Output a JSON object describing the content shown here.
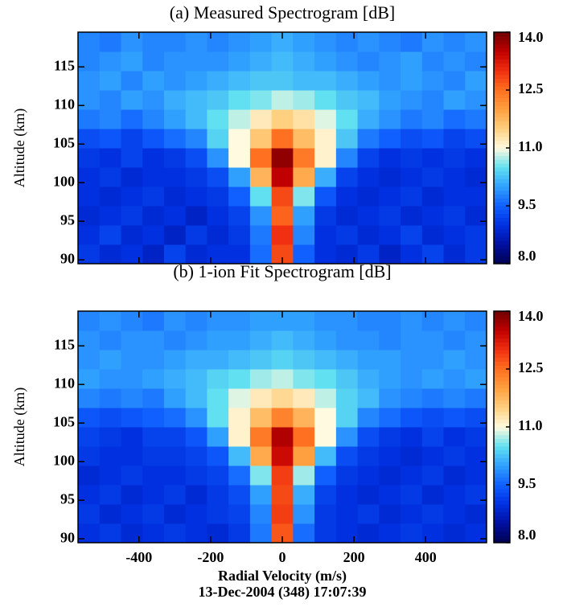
{
  "chart_data": [
    {
      "type": "heatmap",
      "title": "(a) Measured Spectrogram [dB]",
      "y_label": "Altitude (km)",
      "xlim": [
        -570,
        570
      ],
      "ylim": [
        89.5,
        119.5
      ],
      "xticks": [
        -400,
        -200,
        0,
        200,
        400
      ],
      "yticks": [
        90,
        95,
        100,
        105,
        110,
        115
      ],
      "zlim": [
        8,
        14
      ],
      "zticks": [
        {
          "value": 8,
          "label": "8.0"
        },
        {
          "value": 9.5,
          "label": "9.5"
        },
        {
          "value": 11,
          "label": "11.0"
        },
        {
          "value": 12.5,
          "label": "12.5"
        },
        {
          "value": 14,
          "label": "14.0"
        }
      ],
      "colormap": [
        "#000050",
        "#0010a0",
        "#0030e0",
        "#1060ff",
        "#30a0ff",
        "#60e0f0",
        "#fffae0",
        "#ffd080",
        "#ffa040",
        "#ff7020",
        "#f03010",
        "#c00000",
        "#700000"
      ],
      "x": [
        -540,
        -480,
        -420,
        -360,
        -300,
        -240,
        -180,
        -120,
        -60,
        0,
        60,
        120,
        180,
        240,
        300,
        360,
        420,
        480,
        540
      ],
      "y": [
        90.75,
        93.25,
        95.75,
        98.25,
        100.75,
        103.25,
        105.75,
        108.25,
        110.75,
        113.25,
        115.75,
        118.25
      ],
      "z": [
        [
          9.1,
          8.9,
          9.0,
          8.8,
          9.2,
          8.9,
          9.0,
          9.0,
          9.6,
          12.8,
          9.5,
          9.0,
          8.9,
          9.1,
          8.8,
          9.0,
          9.2,
          8.9,
          9.1
        ],
        [
          9.0,
          9.2,
          8.9,
          9.0,
          8.8,
          9.1,
          8.9,
          9.1,
          9.7,
          13.0,
          9.8,
          9.0,
          9.1,
          8.9,
          9.0,
          9.2,
          8.9,
          9.0,
          9.1
        ],
        [
          8.9,
          9.0,
          9.1,
          8.9,
          9.0,
          8.8,
          9.0,
          9.2,
          9.9,
          12.6,
          10.0,
          9.1,
          8.9,
          9.0,
          9.1,
          8.9,
          9.0,
          9.1,
          8.9
        ],
        [
          9.0,
          8.9,
          9.0,
          9.1,
          8.9,
          9.0,
          9.1,
          9.5,
          10.5,
          12.8,
          10.6,
          9.4,
          9.0,
          8.9,
          9.0,
          9.1,
          8.9,
          9.0,
          9.0
        ],
        [
          9.0,
          9.1,
          8.9,
          9.0,
          9.0,
          9.1,
          9.3,
          10.0,
          11.8,
          13.5,
          11.9,
          10.1,
          9.2,
          9.0,
          8.9,
          9.0,
          9.1,
          9.0,
          8.9
        ],
        [
          9.1,
          9.0,
          9.2,
          9.0,
          9.1,
          9.3,
          9.9,
          11.0,
          12.5,
          13.8,
          12.4,
          11.1,
          9.8,
          9.2,
          9.0,
          9.1,
          9.0,
          9.1,
          9.0
        ],
        [
          9.3,
          9.4,
          9.2,
          9.4,
          9.6,
          9.8,
          10.4,
          11.0,
          11.6,
          12.5,
          11.7,
          11.1,
          10.3,
          9.7,
          9.5,
          9.3,
          9.4,
          9.2,
          9.3
        ],
        [
          9.7,
          9.8,
          9.6,
          9.8,
          10.0,
          10.2,
          10.5,
          10.8,
          11.2,
          11.5,
          11.3,
          10.9,
          10.5,
          10.1,
          9.9,
          9.7,
          9.8,
          9.6,
          9.7
        ],
        [
          9.9,
          9.8,
          10.0,
          9.9,
          10.1,
          10.2,
          10.3,
          10.5,
          10.6,
          10.8,
          10.7,
          10.5,
          10.3,
          10.2,
          10.0,
          9.9,
          9.8,
          10.0,
          9.9
        ],
        [
          9.9,
          10.0,
          9.8,
          10.0,
          9.9,
          10.0,
          10.1,
          10.2,
          10.3,
          10.3,
          10.2,
          10.2,
          10.1,
          10.0,
          9.9,
          10.0,
          9.9,
          9.8,
          10.0
        ],
        [
          9.8,
          9.9,
          10.0,
          9.8,
          9.9,
          9.9,
          9.9,
          10.0,
          10.1,
          10.2,
          10.1,
          10.0,
          9.9,
          9.8,
          9.9,
          10.0,
          9.8,
          9.9,
          9.8
        ],
        [
          9.8,
          9.7,
          9.9,
          9.8,
          9.8,
          9.9,
          9.8,
          9.9,
          10.0,
          10.1,
          10.0,
          9.9,
          9.8,
          9.9,
          9.8,
          9.7,
          9.9,
          9.8,
          9.9
        ]
      ]
    },
    {
      "type": "heatmap",
      "title": "(b) 1-ion Fit Spectrogram [dB]",
      "y_label": "Altitude (km)",
      "x_label": "Radial Velocity (m/s)",
      "note": "13-Dec-2004 (348) 17:07:39",
      "xlim": [
        -570,
        570
      ],
      "ylim": [
        89.5,
        119.5
      ],
      "xticks": [
        -400,
        -200,
        0,
        200,
        400
      ],
      "yticks": [
        90,
        95,
        100,
        105,
        110,
        115
      ],
      "zlim": [
        8,
        14
      ],
      "zticks": [
        {
          "value": 8,
          "label": "8.0"
        },
        {
          "value": 9.5,
          "label": "9.5"
        },
        {
          "value": 11,
          "label": "11.0"
        },
        {
          "value": 12.5,
          "label": "12.5"
        },
        {
          "value": 14,
          "label": "14.0"
        }
      ],
      "colormap": [
        "#000050",
        "#0010a0",
        "#0030e0",
        "#1060ff",
        "#30a0ff",
        "#60e0f0",
        "#fffae0",
        "#ffd080",
        "#ffa040",
        "#ff7020",
        "#f03010",
        "#c00000",
        "#700000"
      ],
      "x": [
        -540,
        -480,
        -420,
        -360,
        -300,
        -240,
        -180,
        -120,
        -60,
        0,
        60,
        120,
        180,
        240,
        300,
        360,
        420,
        480,
        540
      ],
      "y": [
        90.75,
        93.25,
        95.75,
        98.25,
        100.75,
        103.25,
        105.75,
        108.25,
        110.75,
        113.25,
        115.75,
        118.25
      ],
      "z": [
        [
          9.0,
          9.1,
          8.9,
          9.0,
          9.1,
          9.0,
          8.9,
          9.1,
          9.7,
          12.7,
          9.6,
          9.1,
          9.0,
          8.9,
          9.0,
          9.1,
          9.0,
          8.9,
          9.0
        ],
        [
          9.1,
          8.9,
          9.0,
          9.1,
          8.9,
          9.0,
          9.1,
          9.2,
          9.8,
          12.9,
          9.9,
          9.1,
          9.0,
          9.1,
          8.9,
          9.0,
          9.1,
          9.0,
          8.9
        ],
        [
          9.0,
          9.1,
          8.9,
          9.0,
          9.1,
          8.9,
          9.1,
          9.3,
          10.0,
          12.8,
          10.1,
          9.2,
          9.0,
          8.9,
          9.0,
          9.1,
          8.9,
          9.0,
          9.1
        ],
        [
          8.9,
          9.0,
          9.1,
          9.0,
          9.0,
          9.1,
          9.2,
          9.6,
          10.6,
          12.9,
          10.7,
          9.5,
          9.1,
          9.0,
          8.9,
          9.0,
          9.1,
          8.9,
          9.0
        ],
        [
          9.1,
          9.0,
          9.0,
          9.1,
          9.1,
          9.2,
          9.4,
          10.2,
          11.9,
          13.4,
          12.0,
          10.2,
          9.3,
          9.1,
          9.0,
          8.9,
          9.0,
          9.1,
          9.0
        ],
        [
          9.2,
          9.1,
          9.0,
          9.2,
          9.2,
          9.4,
          10.0,
          11.1,
          12.4,
          13.6,
          12.5,
          11.0,
          9.9,
          9.3,
          9.1,
          9.0,
          9.2,
          9.0,
          9.1
        ],
        [
          9.4,
          9.3,
          9.4,
          9.5,
          9.6,
          9.9,
          10.5,
          11.1,
          11.7,
          12.3,
          11.8,
          11.0,
          10.4,
          9.8,
          9.6,
          9.4,
          9.3,
          9.4,
          9.3
        ],
        [
          9.8,
          9.7,
          9.8,
          9.7,
          10.0,
          10.2,
          10.5,
          10.9,
          11.2,
          11.4,
          11.2,
          10.8,
          10.4,
          10.2,
          9.9,
          9.8,
          9.7,
          9.8,
          9.7
        ],
        [
          10.0,
          9.9,
          9.9,
          10.0,
          10.1,
          10.2,
          10.4,
          10.5,
          10.7,
          10.8,
          10.6,
          10.5,
          10.3,
          10.1,
          10.0,
          9.9,
          10.0,
          9.9,
          10.0
        ],
        [
          9.9,
          10.0,
          9.9,
          9.9,
          10.0,
          10.1,
          10.1,
          10.2,
          10.3,
          10.4,
          10.3,
          10.2,
          10.1,
          10.0,
          10.0,
          9.9,
          9.9,
          10.0,
          9.9
        ],
        [
          9.9,
          9.8,
          9.9,
          9.9,
          9.8,
          9.9,
          10.0,
          10.0,
          10.1,
          10.2,
          10.1,
          10.0,
          9.9,
          9.9,
          9.8,
          9.9,
          9.9,
          9.8,
          9.9
        ],
        [
          9.8,
          9.9,
          9.8,
          9.7,
          9.9,
          9.8,
          9.9,
          9.9,
          10.0,
          10.0,
          10.0,
          9.9,
          9.9,
          9.8,
          9.8,
          9.9,
          9.8,
          9.9,
          9.8
        ]
      ]
    }
  ]
}
